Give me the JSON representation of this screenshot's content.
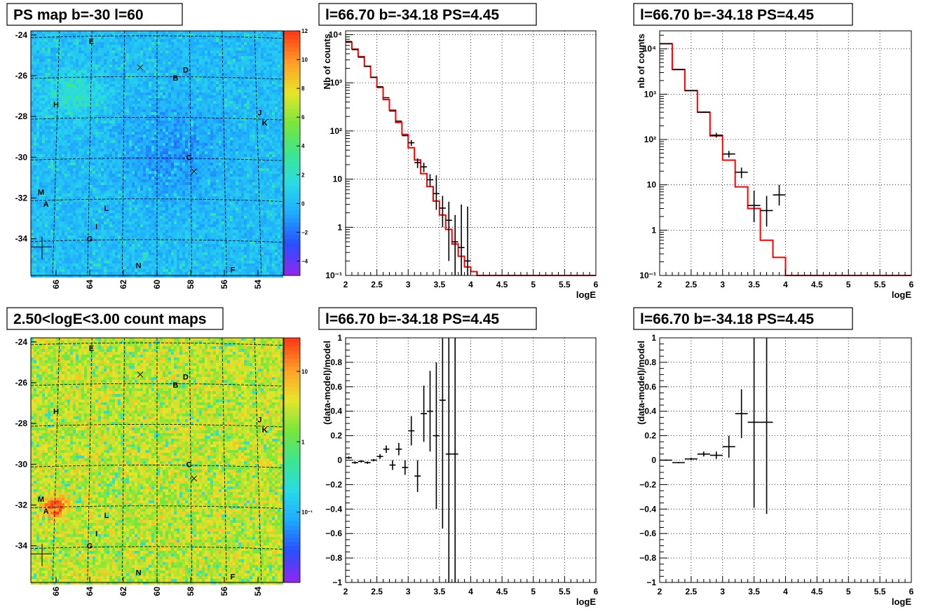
{
  "colors": {
    "model_line": "#ff0000",
    "data_points": "#000000",
    "grid": "#000000",
    "map_bg_top": "#22ccee",
    "map_bg_bottom": "#f0a020"
  },
  "chart_data": [
    {
      "id": "ps-map",
      "type": "heatmap",
      "title": "PS map b=-30 l=60",
      "xlabel": "",
      "ylabel": "",
      "xlim": [
        67.5,
        52.5
      ],
      "ylim": [
        -35.8,
        -23.8
      ],
      "x_ticks": [
        "66",
        "64",
        "62",
        "60",
        "58",
        "56",
        "54"
      ],
      "y_ticks": [
        "-24",
        "-26",
        "-28",
        "-30",
        "-32",
        "-34"
      ],
      "colorbar": {
        "scale": "linear",
        "range": [
          -5,
          12
        ],
        "ticks": [
          "12",
          "10",
          "8",
          "6",
          "4",
          "2",
          "0",
          "−2",
          "−4"
        ]
      },
      "sources": [
        {
          "label": "E",
          "l": 63.9,
          "b": -24.3
        },
        {
          "label": "D",
          "l": 58.3,
          "b": -25.7
        },
        {
          "label": "B",
          "l": 58.9,
          "b": -26.1
        },
        {
          "label": "H",
          "l": 66.0,
          "b": -27.4
        },
        {
          "label": "J",
          "l": 53.9,
          "b": -27.8
        },
        {
          "label": "K",
          "l": 53.6,
          "b": -28.3
        },
        {
          "label": "C",
          "l": 58.1,
          "b": -30.0
        },
        {
          "label": "M",
          "l": 66.9,
          "b": -31.7
        },
        {
          "label": "A",
          "l": 66.6,
          "b": -32.3
        },
        {
          "label": "L",
          "l": 63.0,
          "b": -32.5
        },
        {
          "label": "I",
          "l": 63.6,
          "b": -33.4
        },
        {
          "label": "G",
          "l": 64.0,
          "b": -34.0
        },
        {
          "label": "N",
          "l": 61.1,
          "b": -35.3
        },
        {
          "label": "F",
          "l": 55.5,
          "b": -35.5
        }
      ],
      "crosses": [
        {
          "l": 61.0,
          "b": -25.6
        },
        {
          "l": 57.8,
          "b": -30.7
        }
      ]
    },
    {
      "id": "spectrum-fine",
      "type": "line",
      "title": "l=66.70 b=-34.18 PS=4.45",
      "xlabel": "logE",
      "ylabel": "Nb of counts",
      "xlim": [
        2,
        6
      ],
      "ylim": [
        0.1,
        12000
      ],
      "yscale": "log",
      "x_ticks": [
        "2",
        "2.5",
        "3",
        "3.5",
        "4",
        "4.5",
        "5",
        "5.5",
        "6"
      ],
      "y_ticks": [
        "10⁴",
        "10³",
        "10²",
        "10",
        "1",
        "10⁻¹"
      ],
      "grid": true,
      "series": [
        {
          "kind": "model",
          "step_edges": [
            2.0,
            2.1,
            2.2,
            2.3,
            2.4,
            2.5,
            2.6,
            2.7,
            2.8,
            2.9,
            3.0,
            3.1,
            3.2,
            3.3,
            3.4,
            3.5,
            3.6,
            3.7,
            3.8,
            3.9,
            4.0,
            4.1,
            4.2,
            6.0
          ],
          "values": [
            7000,
            5000,
            3500,
            2200,
            1300,
            800,
            450,
            270,
            150,
            85,
            45,
            25,
            13,
            7,
            3.5,
            1.8,
            0.9,
            0.45,
            0.25,
            0.15,
            0.12,
            0.1,
            0.1
          ]
        },
        {
          "kind": "data",
          "x": [
            2.05,
            2.15,
            2.25,
            2.35,
            2.45,
            2.55,
            2.65,
            2.75,
            2.85,
            2.95,
            3.05,
            3.15,
            3.25,
            3.35,
            3.45,
            3.55,
            3.65,
            3.75,
            3.85,
            3.95
          ],
          "y": [
            7200,
            4900,
            3400,
            2200,
            1300,
            830,
            490,
            260,
            160,
            80,
            57,
            22,
            18,
            9.7,
            5,
            2.5,
            1.4,
            0.5,
            0.38,
            0.2
          ],
          "yerr_lo": [
            0,
            0,
            0,
            0,
            0,
            0,
            0,
            0,
            0,
            0,
            8,
            5,
            4,
            2.6,
            2.7,
            1.5,
            1.2,
            0.5,
            0.38,
            0.2
          ],
          "yerr_hi": [
            0,
            0,
            0,
            0,
            0,
            0,
            0,
            0,
            0,
            0,
            8,
            5,
            4,
            3.0,
            7,
            2.0,
            2.0,
            1.3,
            2.6,
            2.5
          ]
        }
      ]
    },
    {
      "id": "spectrum-coarse",
      "type": "line",
      "title": "l=66.70 b=-34.18 PS=4.45",
      "xlabel": "logE",
      "ylabel": "nb of counts",
      "xlim": [
        2,
        6
      ],
      "ylim": [
        0.1,
        25000
      ],
      "yscale": "log",
      "x_ticks": [
        "2",
        "2.5",
        "3",
        "3.5",
        "4",
        "4.5",
        "5",
        "5.5",
        "6"
      ],
      "y_ticks": [
        "10⁴",
        "10³",
        "10²",
        "10",
        "1",
        "10⁻¹"
      ],
      "grid": true,
      "series": [
        {
          "kind": "model",
          "step_edges": [
            2.0,
            2.2,
            2.4,
            2.6,
            2.8,
            3.0,
            3.2,
            3.4,
            3.6,
            3.8,
            4.0,
            4.2,
            6.0
          ],
          "values": [
            13000,
            3500,
            1200,
            400,
            120,
            35,
            9,
            3,
            0.6,
            0.25,
            0.1,
            0.1
          ]
        },
        {
          "kind": "data",
          "x": [
            2.1,
            2.3,
            2.5,
            2.7,
            2.9,
            3.1,
            3.3,
            3.5,
            3.7,
            3.9
          ],
          "y": [
            13000,
            3500,
            1200,
            400,
            125,
            48,
            19,
            3.5,
            2.7,
            6
          ],
          "yerr_lo": [
            0,
            0,
            0,
            0,
            15,
            8,
            5,
            2,
            1.5,
            2.5
          ],
          "yerr_hi": [
            0,
            0,
            0,
            0,
            15,
            8,
            5,
            4,
            3.0,
            4
          ]
        }
      ]
    },
    {
      "id": "count-map",
      "type": "heatmap",
      "title": "2.50<logE<3.00 count maps",
      "xlabel": "",
      "ylabel": "",
      "xlim": [
        67.5,
        52.5
      ],
      "ylim": [
        -35.8,
        -23.8
      ],
      "x_ticks": [
        "66",
        "64",
        "62",
        "60",
        "58",
        "56",
        "54"
      ],
      "y_ticks": [
        "-24",
        "-26",
        "-28",
        "-30",
        "-32",
        "-34"
      ],
      "colorbar": {
        "scale": "log",
        "range": [
          0.01,
          30
        ],
        "ticks": [
          "10",
          "1",
          "10⁻¹"
        ]
      },
      "sources": [
        {
          "label": "E",
          "l": 63.9,
          "b": -24.3
        },
        {
          "label": "D",
          "l": 58.3,
          "b": -25.7
        },
        {
          "label": "B",
          "l": 58.9,
          "b": -26.1
        },
        {
          "label": "H",
          "l": 66.0,
          "b": -27.4
        },
        {
          "label": "J",
          "l": 53.9,
          "b": -27.8
        },
        {
          "label": "K",
          "l": 53.6,
          "b": -28.3
        },
        {
          "label": "C",
          "l": 58.1,
          "b": -30.0
        },
        {
          "label": "M",
          "l": 66.9,
          "b": -31.7
        },
        {
          "label": "A",
          "l": 66.6,
          "b": -32.3
        },
        {
          "label": "L",
          "l": 63.0,
          "b": -32.5
        },
        {
          "label": "I",
          "l": 63.6,
          "b": -33.4
        },
        {
          "label": "G",
          "l": 64.0,
          "b": -34.0
        },
        {
          "label": "N",
          "l": 61.1,
          "b": -35.3
        },
        {
          "label": "F",
          "l": 55.5,
          "b": -35.5
        }
      ],
      "crosses": [
        {
          "l": 61.0,
          "b": -25.6
        },
        {
          "l": 57.8,
          "b": -30.7
        }
      ]
    },
    {
      "id": "residual-fine",
      "type": "scatter",
      "title": "l=66.70 b=-34.18 PS=4.45",
      "xlabel": "logE",
      "ylabel": "(data-model)/model",
      "xlim": [
        2,
        6
      ],
      "ylim": [
        -1,
        1
      ],
      "x_ticks": [
        "2",
        "2.5",
        "3",
        "3.5",
        "4",
        "4.5",
        "5",
        "5.5",
        "6"
      ],
      "y_ticks": [
        "1",
        "0.8",
        "0.6",
        "0.4",
        "0.2",
        "0",
        "−0.2",
        "−0.4",
        "−0.6",
        "−0.8",
        "−1"
      ],
      "grid": true,
      "series": [
        {
          "kind": "data",
          "x": [
            2.05,
            2.15,
            2.25,
            2.35,
            2.45,
            2.55,
            2.65,
            2.75,
            2.85,
            2.95,
            3.05,
            3.15,
            3.25,
            3.35,
            3.45,
            3.55,
            3.65,
            3.75
          ],
          "y": [
            0.02,
            -0.02,
            -0.01,
            -0.02,
            0,
            0.03,
            0.09,
            -0.04,
            0.09,
            -0.06,
            0.24,
            -0.13,
            0.38,
            0.4,
            0.2,
            0.49,
            0.05,
            0.05
          ],
          "yerr": [
            0.01,
            0.01,
            0.01,
            0.01,
            0.01,
            0.02,
            0.03,
            0.04,
            0.05,
            0.06,
            0.12,
            0.13,
            0.23,
            0.33,
            0.6,
            1.05,
            1.3,
            1.3
          ]
        }
      ]
    },
    {
      "id": "residual-coarse",
      "type": "scatter",
      "title": "l=66.70 b=-34.18 PS=4.45",
      "xlabel": "logE",
      "ylabel": "(data-model)/model",
      "xlim": [
        2,
        6
      ],
      "ylim": [
        -1,
        1
      ],
      "x_ticks": [
        "2",
        "2.5",
        "3",
        "3.5",
        "4",
        "4.5",
        "5",
        "5.5",
        "6"
      ],
      "y_ticks": [
        "1",
        "0.8",
        "0.6",
        "0.4",
        "0.2",
        "0",
        "−0.2",
        "−0.4",
        "−0.6",
        "−0.8",
        "−1"
      ],
      "grid": true,
      "series": [
        {
          "kind": "data",
          "x": [
            2.1,
            2.3,
            2.5,
            2.7,
            2.9,
            3.1,
            3.3,
            3.5,
            3.7
          ],
          "y": [
            0,
            -0.02,
            0.01,
            0.05,
            0.04,
            0.11,
            0.38,
            0.31,
            0.31
          ],
          "yerr": [
            0.005,
            0.005,
            0.01,
            0.02,
            0.03,
            0.09,
            0.2,
            0.7,
            0.75
          ]
        }
      ]
    }
  ]
}
